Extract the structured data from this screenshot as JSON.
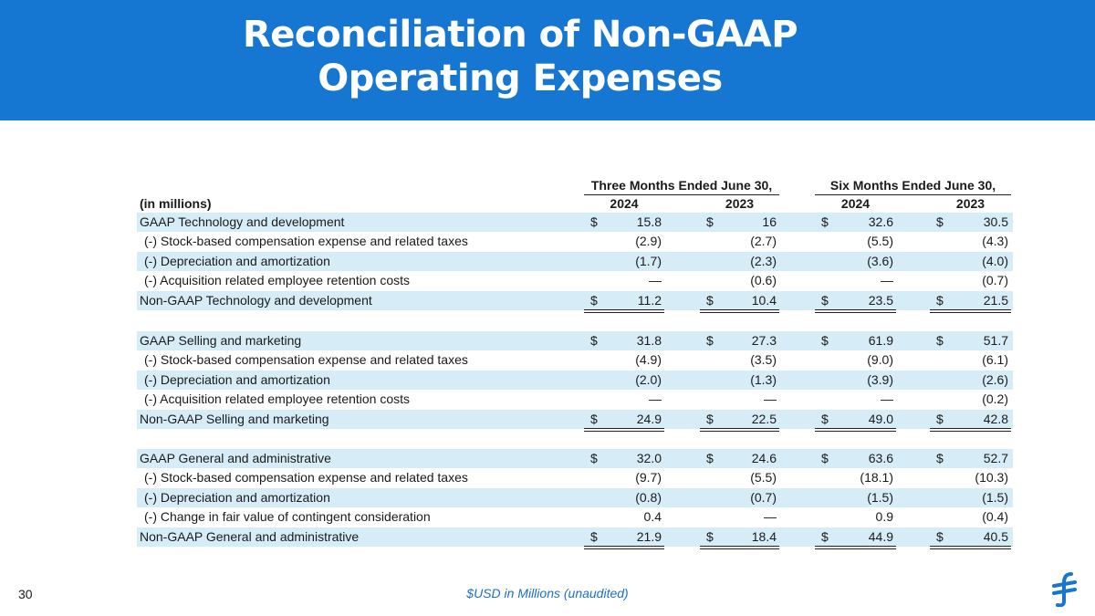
{
  "slide": {
    "title_line1": "Reconciliation of Non-GAAP",
    "title_line2": "Operating Expenses",
    "page_number": "30",
    "footnote": "$USD in Millions (unaudited)",
    "logo_icon": "flywire-logo-icon",
    "accent_color": "#1677d2"
  },
  "table": {
    "units_label": "(in millions)",
    "groups": [
      "Three Months Ended June 30,",
      "Six Months Ended June 30,"
    ],
    "years": [
      "2024",
      "2023",
      "2024",
      "2023"
    ],
    "currency_symbol": "$",
    "rows": [
      {
        "label": "GAAP Technology and development",
        "values": [
          "15.8",
          "16",
          "32.6",
          "30.5"
        ],
        "dollar": true
      },
      {
        "label": "(-) Stock-based compensation expense and related taxes",
        "values": [
          "(2.9)",
          "(2.7)",
          "(5.5)",
          "(4.3)"
        ]
      },
      {
        "label": "(-) Depreciation and amortization",
        "values": [
          "(1.7)",
          "(2.3)",
          "(3.6)",
          "(4.0)"
        ]
      },
      {
        "label": "(-) Acquisition related employee retention costs",
        "values": [
          "—",
          "(0.6)",
          "—",
          "(0.7)"
        ]
      },
      {
        "label": "Non-GAAP Technology and development",
        "values": [
          "11.2",
          "10.4",
          "23.5",
          "21.5"
        ],
        "dollar": true
      },
      {
        "label": "GAAP Selling and marketing",
        "values": [
          "31.8",
          "27.3",
          "61.9",
          "51.7"
        ],
        "dollar": true
      },
      {
        "label": "(-) Stock-based compensation expense and related taxes",
        "values": [
          "(4.9)",
          "(3.5)",
          "(9.0)",
          "(6.1)"
        ]
      },
      {
        "label": "(-) Depreciation and amortization",
        "values": [
          "(2.0)",
          "(1.3)",
          "(3.9)",
          "(2.6)"
        ]
      },
      {
        "label": "(-) Acquisition related employee retention costs",
        "values": [
          "—",
          "—",
          "—",
          "(0.2)"
        ]
      },
      {
        "label": "Non-GAAP Selling and marketing",
        "values": [
          "24.9",
          "22.5",
          "49.0",
          "42.8"
        ],
        "dollar": true
      },
      {
        "label": "GAAP General and administrative",
        "values": [
          "32.0",
          "24.6",
          "63.6",
          "52.7"
        ],
        "dollar": true
      },
      {
        "label": "(-) Stock-based compensation expense and related taxes",
        "values": [
          "(9.7)",
          "(5.5)",
          "(18.1)",
          "(10.3)"
        ]
      },
      {
        "label": "(-) Depreciation and amortization",
        "values": [
          "(0.8)",
          "(0.7)",
          "(1.5)",
          "(1.5)"
        ]
      },
      {
        "label": "(-) Change in fair value of contingent consideration",
        "values": [
          "0.4",
          "—",
          "0.9",
          "(0.4)"
        ]
      },
      {
        "label": "Non-GAAP General and administrative",
        "values": [
          "21.9",
          "18.4",
          "44.9",
          "40.5"
        ],
        "dollar": true
      }
    ]
  }
}
